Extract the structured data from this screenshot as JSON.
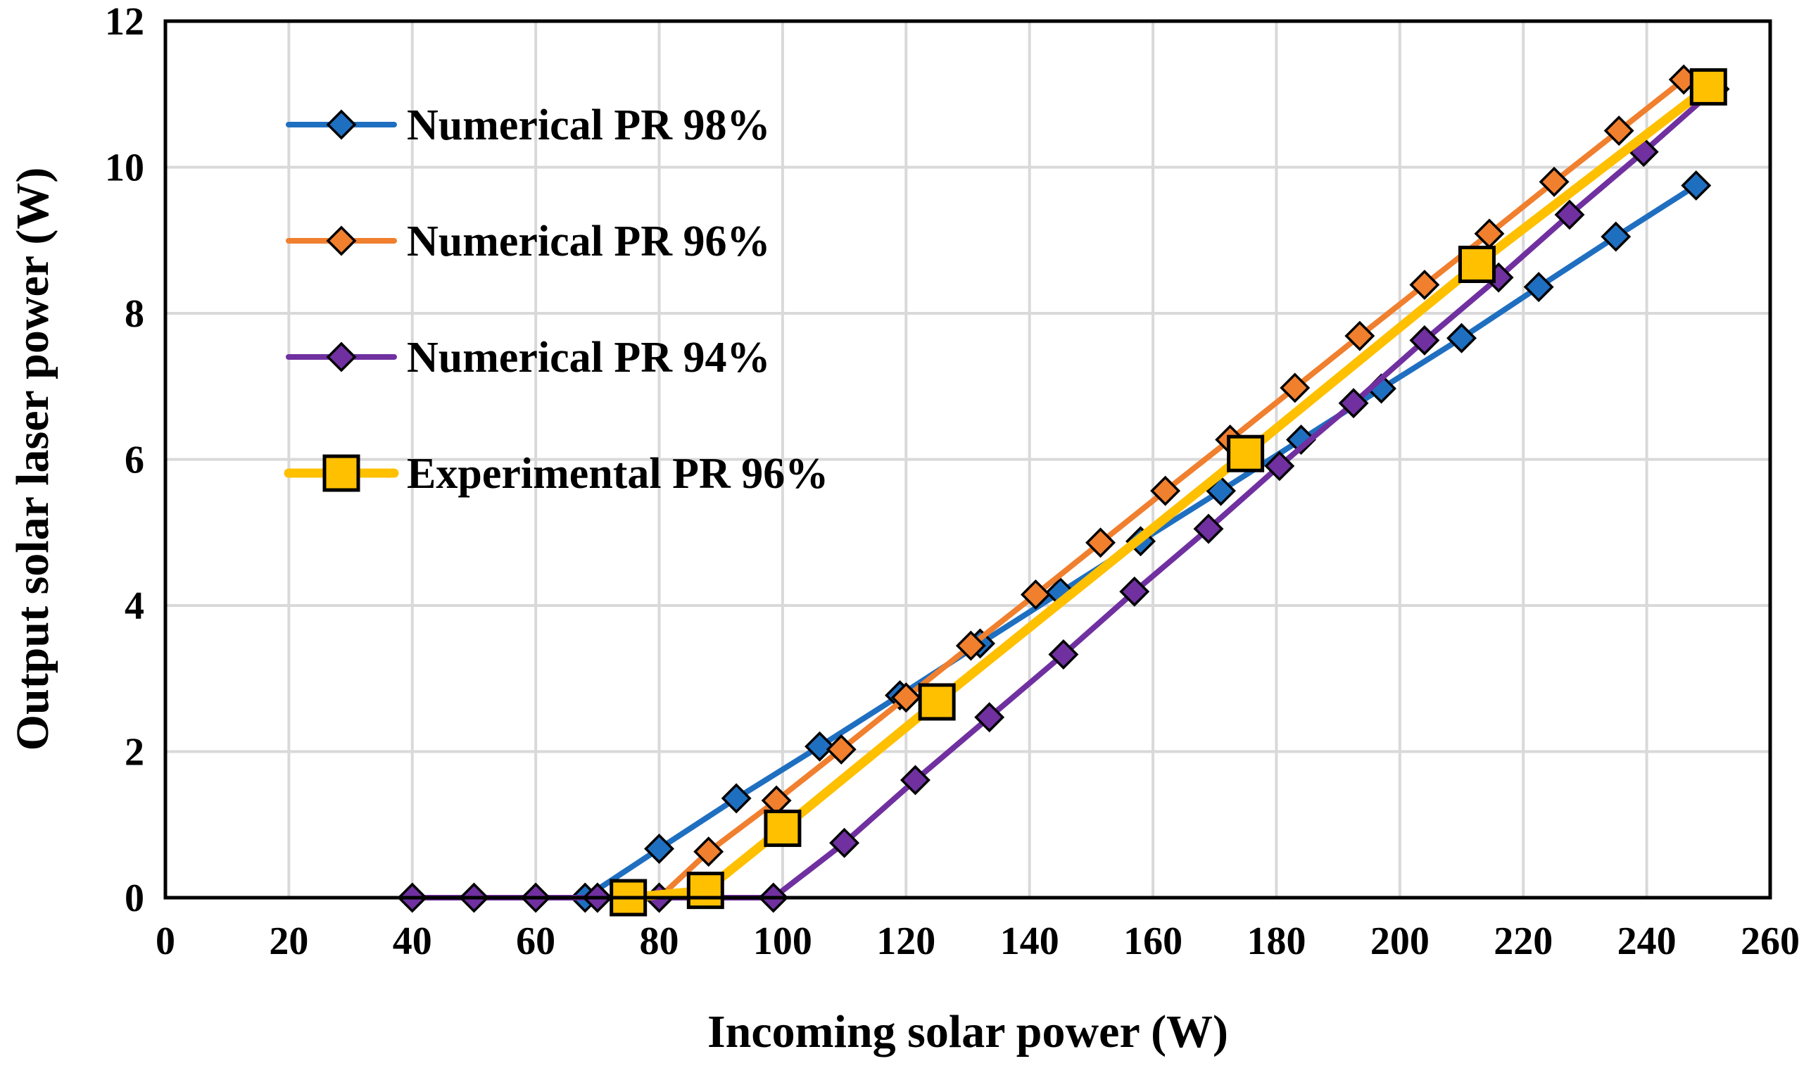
{
  "chart_data": {
    "type": "line",
    "title": "",
    "xlabel": "Incoming solar power (W)",
    "ylabel": "Output solar laser power (W)",
    "xlim": [
      0,
      260
    ],
    "ylim": [
      0,
      12
    ],
    "xticks": [
      "0",
      "20",
      "40",
      "60",
      "80",
      "100",
      "120",
      "140",
      "160",
      "180",
      "200",
      "220",
      "240",
      "260"
    ],
    "yticks": [
      "0",
      "2",
      "4",
      "6",
      "8",
      "10",
      "12"
    ],
    "grid": true,
    "legend_position": "top-left",
    "series": [
      {
        "name": "Numerical PR 98%",
        "color": "#1f6fc1",
        "marker": "diamond",
        "points": [
          [
            68,
            0
          ],
          [
            80,
            0.67
          ],
          [
            92.5,
            1.36
          ],
          [
            106,
            2.07
          ],
          [
            119,
            2.77
          ],
          [
            132,
            3.48
          ],
          [
            145,
            4.18
          ],
          [
            158,
            4.88
          ],
          [
            171,
            5.57
          ],
          [
            184,
            6.27
          ],
          [
            197,
            6.97
          ],
          [
            210,
            7.66
          ],
          [
            222.5,
            8.36
          ],
          [
            235,
            9.05
          ],
          [
            248,
            9.75
          ]
        ]
      },
      {
        "name": "Numerical PR 96%",
        "color": "#f07f2e",
        "marker": "diamond",
        "points": [
          [
            70,
            0
          ],
          [
            80,
            0
          ],
          [
            88,
            0.63
          ],
          [
            99,
            1.33
          ],
          [
            109.5,
            2.03
          ],
          [
            120,
            2.74
          ],
          [
            130.5,
            3.45
          ],
          [
            141,
            4.15
          ],
          [
            151.5,
            4.86
          ],
          [
            162,
            5.57
          ],
          [
            172.5,
            6.27
          ],
          [
            183,
            6.98
          ],
          [
            193.5,
            7.69
          ],
          [
            204,
            8.39
          ],
          [
            214.5,
            9.09
          ],
          [
            225,
            9.8
          ],
          [
            235.5,
            10.5
          ],
          [
            246,
            11.2
          ]
        ]
      },
      {
        "name": "Numerical PR 94%",
        "color": "#7030a0",
        "marker": "diamond",
        "points": [
          [
            40,
            0
          ],
          [
            50,
            0
          ],
          [
            60,
            0
          ],
          [
            70,
            0
          ],
          [
            80,
            0
          ],
          [
            98.5,
            0
          ],
          [
            110,
            0.75
          ],
          [
            121.5,
            1.61
          ],
          [
            133.5,
            2.47
          ],
          [
            145.5,
            3.33
          ],
          [
            157,
            4.19
          ],
          [
            169,
            5.05
          ],
          [
            180.5,
            5.91
          ],
          [
            192.5,
            6.77
          ],
          [
            204,
            7.63
          ],
          [
            216,
            8.49
          ],
          [
            227.5,
            9.35
          ],
          [
            239.5,
            10.21
          ],
          [
            251,
            11.07
          ]
        ]
      },
      {
        "name": "Experimental PR 96%",
        "color": "#ffc000",
        "marker": "square",
        "points": [
          [
            75,
            0
          ],
          [
            87.5,
            0.1
          ],
          [
            100,
            0.95
          ],
          [
            125,
            2.68
          ],
          [
            175,
            6.08
          ],
          [
            212.5,
            8.67
          ],
          [
            250,
            11.1
          ]
        ]
      }
    ]
  }
}
